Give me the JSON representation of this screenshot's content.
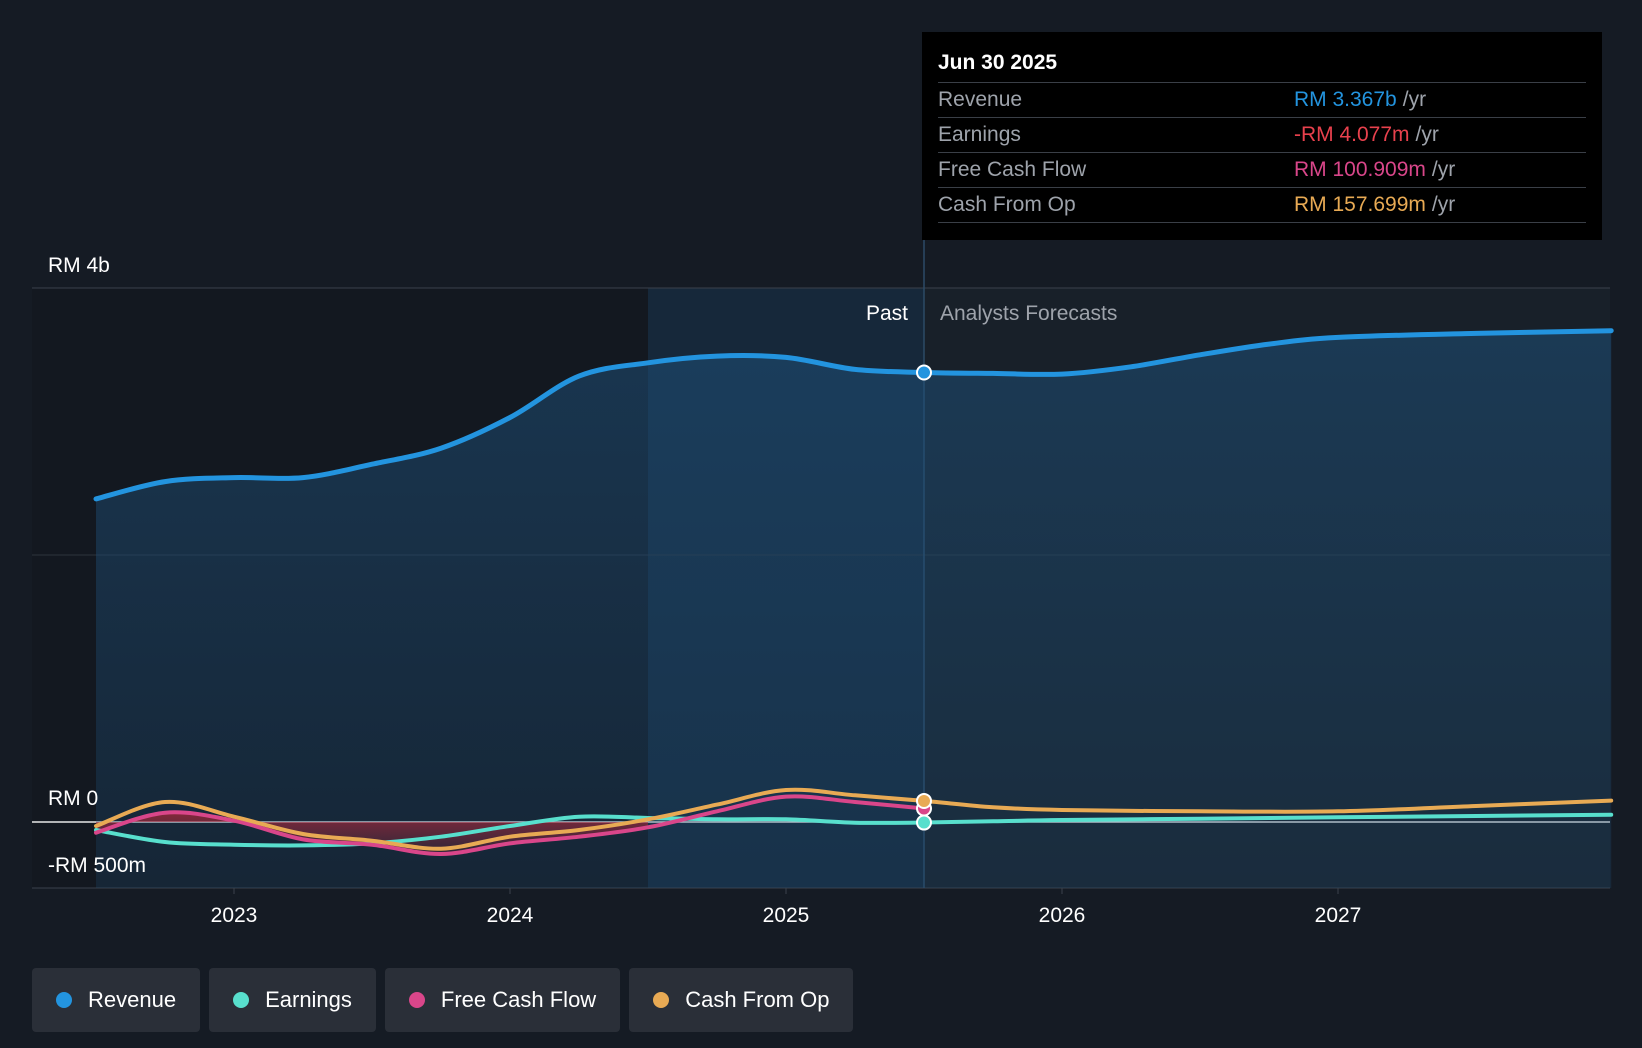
{
  "chart_data": {
    "type": "area",
    "y_axis": {
      "labels": [
        "RM 4b",
        "RM 0",
        "-RM 500m"
      ],
      "ylim": [
        -500,
        4000
      ],
      "unit": "RM m"
    },
    "x_axis": {
      "ticks": [
        "2023",
        "2024",
        "2025",
        "2026",
        "2027"
      ],
      "tick_values": [
        2023,
        2024,
        2025,
        2026,
        2027
      ],
      "xlim": [
        2022.27,
        2027.99
      ]
    },
    "regions": {
      "past_label": "Past",
      "forecast_label": "Analysts Forecasts",
      "highlight_start": 2024.5,
      "divider": 2025.5
    },
    "series": [
      {
        "name": "Revenue",
        "color": "#2394df",
        "fill": true,
        "x": [
          2022.5,
          2022.75,
          2023.0,
          2023.25,
          2023.5,
          2023.75,
          2024.0,
          2024.25,
          2024.5,
          2024.75,
          2025.0,
          2025.25,
          2025.5,
          2025.75,
          2026.0,
          2026.25,
          2026.5,
          2026.75,
          2027.0,
          2027.5,
          2027.99
        ],
        "values": [
          2420,
          2550,
          2580,
          2580,
          2680,
          2800,
          3030,
          3340,
          3440,
          3490,
          3480,
          3390,
          3367,
          3360,
          3355,
          3410,
          3500,
          3580,
          3630,
          3660,
          3680
        ]
      },
      {
        "name": "Earnings",
        "color": "#58dfcd",
        "fill": false,
        "x": [
          2022.5,
          2022.75,
          2023.0,
          2023.25,
          2023.5,
          2023.75,
          2024.0,
          2024.25,
          2024.5,
          2024.75,
          2025.0,
          2025.25,
          2025.5,
          2025.75,
          2026.0,
          2026.5,
          2027.0,
          2027.5,
          2027.99
        ],
        "values": [
          -60,
          -150,
          -170,
          -175,
          -160,
          -110,
          -30,
          40,
          30,
          20,
          20,
          -5,
          -4.077,
          5,
          15,
          25,
          35,
          45,
          55
        ]
      },
      {
        "name": "Free Cash Flow",
        "color": "#d9468a",
        "fill": false,
        "x": [
          2022.5,
          2022.75,
          2023.0,
          2023.25,
          2023.5,
          2023.75,
          2024.0,
          2024.25,
          2024.5,
          2024.75,
          2025.0,
          2025.25,
          2025.5
        ],
        "values": [
          -80,
          70,
          10,
          -130,
          -170,
          -240,
          -160,
          -110,
          -40,
          80,
          190,
          150,
          100.909
        ]
      },
      {
        "name": "Cash From Op",
        "color": "#e8aa54",
        "fill": false,
        "x": [
          2022.5,
          2022.75,
          2023.0,
          2023.25,
          2023.5,
          2023.75,
          2024.0,
          2024.25,
          2024.5,
          2024.75,
          2025.0,
          2025.25,
          2025.5,
          2025.75,
          2026.0,
          2026.5,
          2027.0,
          2027.5,
          2027.99
        ],
        "values": [
          -30,
          150,
          40,
          -90,
          -140,
          -200,
          -110,
          -60,
          20,
          130,
          240,
          200,
          157.699,
          110,
          90,
          80,
          80,
          120,
          160
        ]
      }
    ],
    "tooltip": {
      "date": "Jun 30 2025",
      "rows": [
        {
          "label": "Revenue",
          "value": "RM 3.367b",
          "unit": "/yr",
          "color": "#2394df"
        },
        {
          "label": "Earnings",
          "value": "-RM 4.077m",
          "unit": "/yr",
          "color": "#e8414d"
        },
        {
          "label": "Free Cash Flow",
          "value": "RM 100.909m",
          "unit": "/yr",
          "color": "#d9468a"
        },
        {
          "label": "Cash From Op",
          "value": "RM 157.699m",
          "unit": "/yr",
          "color": "#e8aa54"
        }
      ]
    },
    "legend": [
      {
        "label": "Revenue",
        "color": "#2394df"
      },
      {
        "label": "Earnings",
        "color": "#58dfcd"
      },
      {
        "label": "Free Cash Flow",
        "color": "#d9468a"
      },
      {
        "label": "Cash From Op",
        "color": "#e8aa54"
      }
    ]
  }
}
